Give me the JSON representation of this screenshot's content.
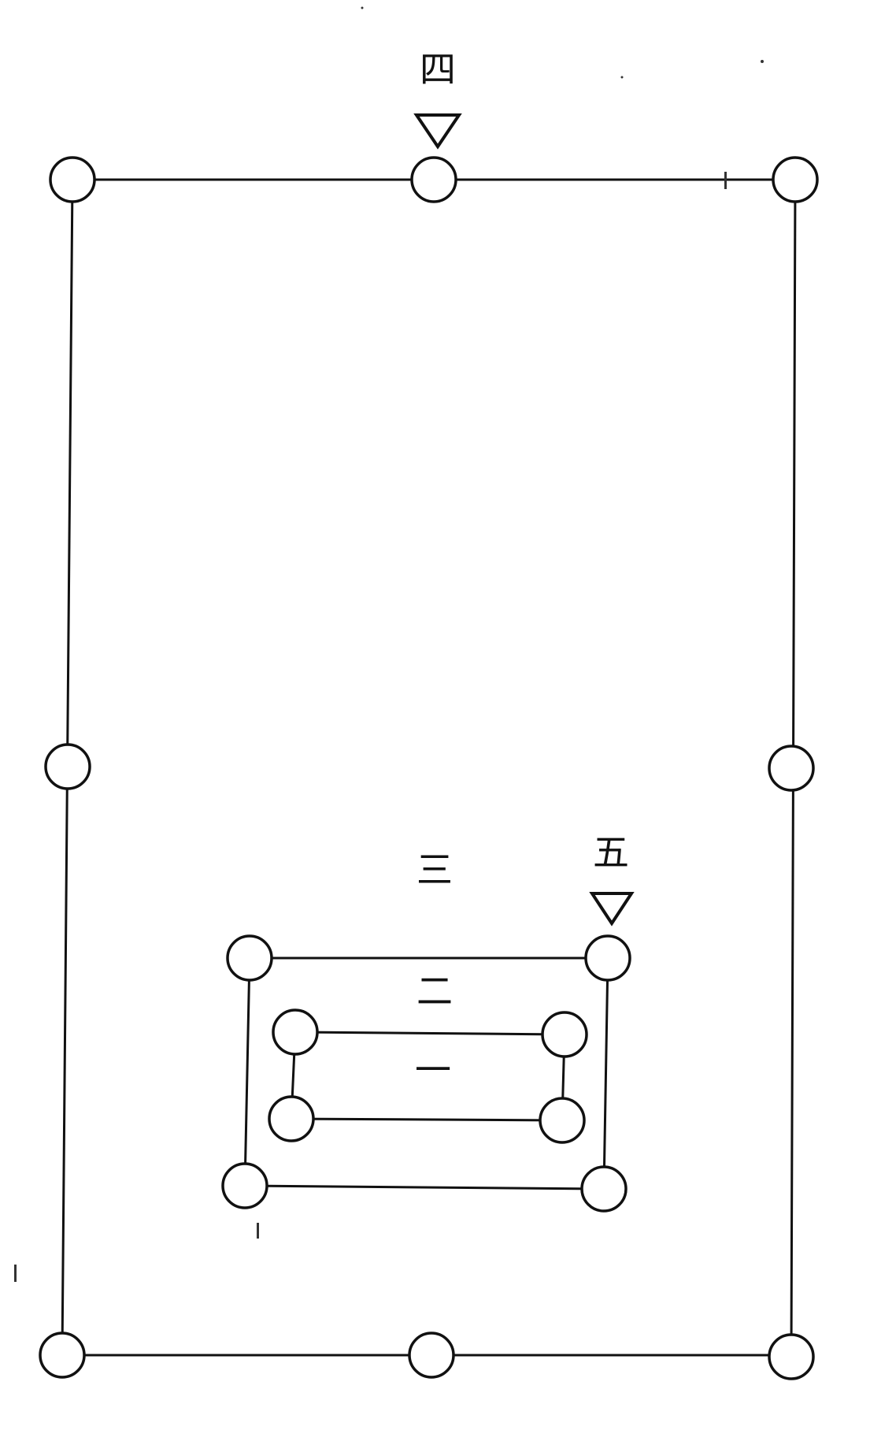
{
  "labels": {
    "four": "四",
    "five": "五",
    "three": "三",
    "two": "二",
    "one": "一"
  },
  "colors": {
    "ink": "#111111",
    "paper": "#ffffff"
  },
  "symbols": {
    "node": "open-circle",
    "marker": "down-triangle"
  }
}
